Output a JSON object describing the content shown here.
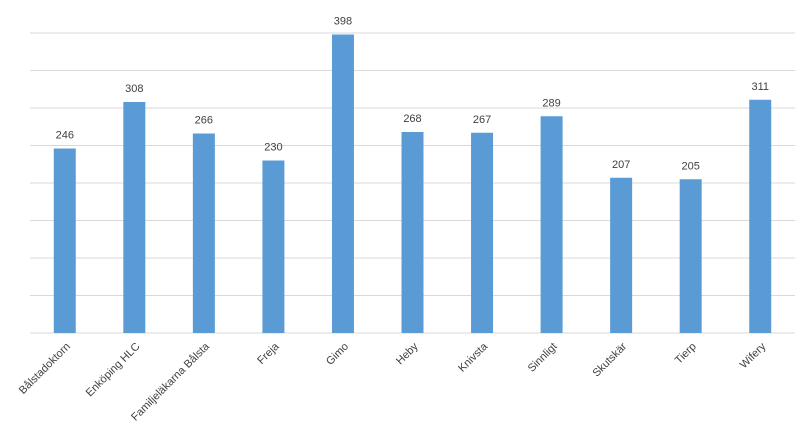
{
  "chart_data": {
    "type": "bar",
    "categories": [
      "Bålstadoktorn",
      "Enköping HLC",
      "Familjeläkarna Bålsta",
      "Freja",
      "Gimo",
      "Heby",
      "Knivsta",
      "Sinnligt",
      "Skutskär",
      "Tierp",
      "Wifery"
    ],
    "values": [
      246,
      308,
      266,
      230,
      398,
      268,
      267,
      289,
      207,
      205,
      311
    ],
    "color": "#5b9bd5",
    "ylim": [
      0,
      400
    ],
    "yticks": [
      0,
      50,
      100,
      150,
      200,
      250,
      300,
      350,
      400
    ],
    "grid": true
  }
}
